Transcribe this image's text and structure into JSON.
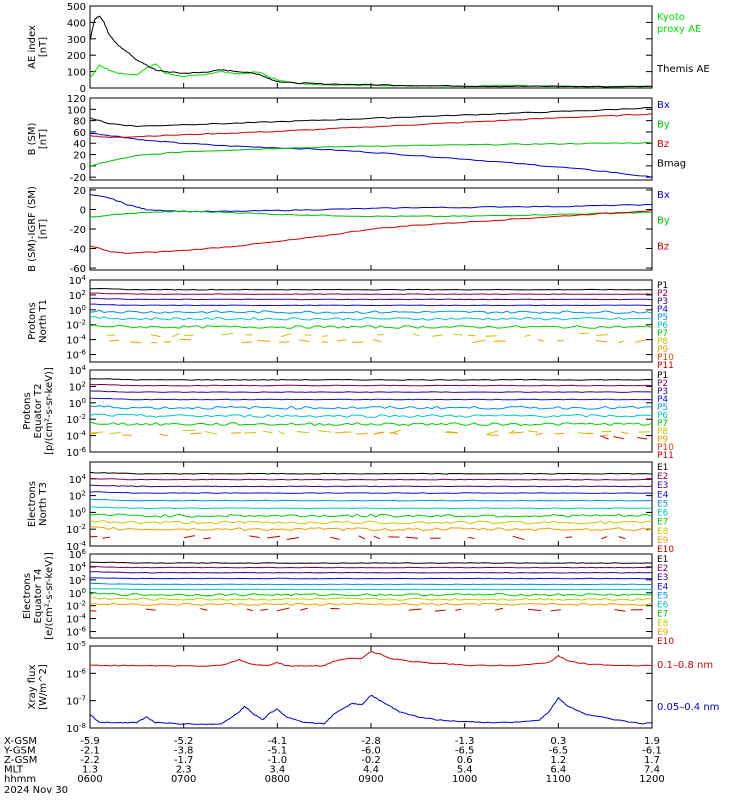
{
  "figure": {
    "date_label": "2024 Nov 30"
  },
  "time_axis": {
    "hours": [
      6,
      7,
      8,
      9,
      10,
      11,
      12
    ],
    "rows": [
      {
        "label": "X-GSM",
        "values": [
          "-5.9",
          "-5.2",
          "-4.1",
          "-2.8",
          "-1.3",
          "0.3",
          "1.9"
        ]
      },
      {
        "label": "Y-GSM",
        "values": [
          "-2.1",
          "-3.8",
          "-5.1",
          "-6.0",
          "-6.5",
          "-6.5",
          "-6.1"
        ]
      },
      {
        "label": "Z-GSM",
        "values": [
          "-2.2",
          "-1.7",
          "-1.0",
          "-0.2",
          "0.6",
          "1.2",
          "1.7"
        ]
      },
      {
        "label": "MLT",
        "values": [
          "1.3",
          "2.3",
          "3.4",
          "4.4",
          "5.4",
          "6.4",
          "7.4"
        ]
      },
      {
        "label": "hhmm",
        "values": [
          "0600",
          "0700",
          "0800",
          "0900",
          "1000",
          "1100",
          "1200"
        ]
      }
    ]
  },
  "chart_data": [
    {
      "type": "line",
      "ylabel": [
        "AE index",
        "[nT]"
      ],
      "ylim": [
        0,
        500
      ],
      "log": false,
      "ticks": [
        "0",
        "100",
        "200",
        "300",
        "400",
        "500"
      ],
      "series": [
        {
          "name": "Kyoto proxy AE",
          "color": "#00e000",
          "x": [
            6.0,
            6.05,
            6.1,
            6.2,
            6.3,
            6.5,
            6.6,
            6.7,
            6.8,
            7.0,
            7.2,
            7.4,
            7.6,
            7.8,
            7.9,
            8.0,
            8.2,
            8.5,
            9.0,
            9.5,
            10.0,
            10.5,
            11.0,
            11.5,
            12.0
          ],
          "y": [
            60,
            100,
            140,
            110,
            90,
            80,
            120,
            150,
            90,
            70,
            80,
            100,
            85,
            100,
            70,
            50,
            30,
            20,
            15,
            15,
            10,
            15,
            10,
            8,
            10
          ]
        },
        {
          "name": "Themis AE",
          "color": "#000000",
          "x": [
            6.0,
            6.05,
            6.1,
            6.15,
            6.2,
            6.3,
            6.4,
            6.5,
            6.6,
            6.7,
            6.8,
            7.0,
            7.2,
            7.4,
            7.6,
            7.8,
            7.9,
            8.0,
            8.2,
            8.5,
            9.0,
            9.5,
            10.0,
            10.5,
            11.0,
            11.5,
            12.0
          ],
          "y": [
            290,
            420,
            440,
            400,
            330,
            260,
            220,
            170,
            140,
            110,
            100,
            90,
            95,
            110,
            100,
            85,
            60,
            40,
            30,
            25,
            20,
            15,
            12,
            10,
            10,
            8,
            10
          ]
        }
      ],
      "legend": [
        {
          "text": "Kyoto",
          "color": "#00e000"
        },
        {
          "text": "proxy AE",
          "color": "#00e000"
        },
        {
          "text": "Themis AE",
          "color": "#000000"
        }
      ]
    },
    {
      "type": "line",
      "ylabel": [
        "B (SM)",
        "[nT]"
      ],
      "ylim": [
        -25,
        120
      ],
      "log": false,
      "ticks": [
        "-20",
        "0",
        "20",
        "40",
        "60",
        "80",
        "100",
        "120"
      ],
      "series": [
        {
          "name": "Bx",
          "color": "#0000d0",
          "x": [
            6.0,
            6.3,
            6.6,
            7.0,
            7.5,
            8.0,
            8.5,
            9.0,
            9.5,
            10.0,
            10.5,
            11.0,
            11.5,
            12.0
          ],
          "y": [
            58,
            52,
            45,
            40,
            35,
            32,
            29,
            24,
            18,
            12,
            5,
            -2,
            -10,
            -20
          ]
        },
        {
          "name": "By",
          "color": "#00c000",
          "x": [
            6.0,
            6.2,
            6.5,
            7.0,
            7.5,
            8.0,
            8.5,
            9.0,
            9.5,
            10.0,
            10.5,
            11.0,
            11.5,
            12.0
          ],
          "y": [
            0,
            8,
            18,
            25,
            28,
            31,
            33,
            35,
            36,
            37,
            38,
            39,
            40,
            41
          ]
        },
        {
          "name": "Bz",
          "color": "#d00000",
          "x": [
            6.0,
            6.2,
            6.5,
            7.0,
            7.5,
            8.0,
            8.5,
            9.0,
            9.5,
            10.0,
            10.5,
            11.0,
            11.5,
            12.0
          ],
          "y": [
            54,
            50,
            52,
            55,
            58,
            61,
            65,
            69,
            73,
            77,
            81,
            85,
            88,
            92
          ]
        },
        {
          "name": "Bmag",
          "color": "#000000",
          "x": [
            6.0,
            6.2,
            6.5,
            7.0,
            7.5,
            8.0,
            8.5,
            9.0,
            9.5,
            10.0,
            10.5,
            11.0,
            11.5,
            12.0
          ],
          "y": [
            85,
            75,
            70,
            73,
            75,
            78,
            81,
            84,
            87,
            90,
            93,
            96,
            99,
            103
          ]
        }
      ],
      "legend": [
        {
          "text": "Bx",
          "color": "#0000d0"
        },
        {
          "text": "By",
          "color": "#00c000"
        },
        {
          "text": "Bz",
          "color": "#d00000"
        },
        {
          "text": "Bmag",
          "color": "#000000"
        }
      ]
    },
    {
      "type": "line",
      "ylabel": [
        "B (SM)-IGRF (SM)",
        "[nT]"
      ],
      "ylim": [
        -62,
        22
      ],
      "log": false,
      "ticks": [
        "-60",
        "-40",
        "-20",
        "0",
        "20"
      ],
      "series": [
        {
          "name": "Bx",
          "color": "#0000d0",
          "x": [
            6.0,
            6.2,
            6.4,
            6.6,
            7.0,
            7.5,
            8.0,
            8.5,
            9.0,
            9.5,
            10.0,
            10.5,
            11.0,
            11.5,
            12.0
          ],
          "y": [
            15,
            12,
            5,
            0,
            -2,
            -2,
            -1,
            0,
            1,
            2,
            2,
            3,
            3,
            4,
            5
          ]
        },
        {
          "name": "By",
          "color": "#00c000",
          "x": [
            6.0,
            6.3,
            6.6,
            7.0,
            7.5,
            8.0,
            8.5,
            9.0,
            9.5,
            10.0,
            10.5,
            11.0,
            11.5,
            12.0
          ],
          "y": [
            -8,
            -5,
            -3,
            -2,
            -3,
            -5,
            -6,
            -7,
            -7,
            -7,
            -6,
            -5,
            -4,
            -3
          ]
        },
        {
          "name": "Bz",
          "color": "#d00000",
          "x": [
            6.0,
            6.2,
            6.4,
            7.0,
            7.5,
            8.0,
            8.5,
            9.0,
            9.5,
            10.0,
            10.5,
            11.0,
            11.5,
            12.0
          ],
          "y": [
            -37,
            -43,
            -45,
            -42,
            -38,
            -33,
            -27,
            -20,
            -16,
            -13,
            -10,
            -7,
            -4,
            -1
          ]
        }
      ],
      "legend": [
        {
          "text": "Bx",
          "color": "#0000d0"
        },
        {
          "text": "By",
          "color": "#00c000"
        },
        {
          "text": "Bz",
          "color": "#d00000"
        }
      ]
    },
    {
      "type": "line",
      "ylabel": [
        "Protons",
        "North T1"
      ],
      "ylim": [
        -7,
        4
      ],
      "log": true,
      "ticks": [
        "10^-6",
        "10^-4",
        "10^-2",
        "10^0",
        "10^2",
        "10^4"
      ],
      "series_levels": [
        {
          "name": "P1",
          "color": "#000000",
          "level": 2.7
        },
        {
          "name": "P2",
          "color": "#800050",
          "level": 2.1
        },
        {
          "name": "P3",
          "color": "#3a0090",
          "level": 1.4
        },
        {
          "name": "P4",
          "color": "#1010e0",
          "level": 0.6
        },
        {
          "name": "P5",
          "color": "#0090f0",
          "level": -0.3
        },
        {
          "name": "P6",
          "color": "#00c8c0",
          "level": -1.2
        },
        {
          "name": "P7",
          "color": "#00d000",
          "level": -2.3
        },
        {
          "name": "P8",
          "color": "#c8c800",
          "level": -3.4,
          "dashed": true
        },
        {
          "name": "P9",
          "color": "#f0a000",
          "level": -4.2,
          "dashed": true
        },
        {
          "name": "P10",
          "color": "#e04000"
        },
        {
          "name": "P11",
          "color": "#c00000"
        }
      ]
    },
    {
      "type": "line",
      "ylabel": [
        "Protons",
        "Equator T2",
        "[p/(cm²-s-sr-keV)]"
      ],
      "ylim": [
        -6,
        4
      ],
      "log": true,
      "ticks": [
        "10^-6",
        "10^-4",
        "10^-2",
        "10^0",
        "10^2",
        "10^4"
      ],
      "series_levels": [
        {
          "name": "P1",
          "color": "#000000",
          "level": 2.8
        },
        {
          "name": "P2",
          "color": "#800050",
          "level": 2.1
        },
        {
          "name": "P3",
          "color": "#3a0090",
          "level": 1.3
        },
        {
          "name": "P4",
          "color": "#1010e0",
          "level": 0.4
        },
        {
          "name": "P5",
          "color": "#0090f0",
          "level": -0.6
        },
        {
          "name": "P6",
          "color": "#00c8c0",
          "level": -1.6
        },
        {
          "name": "P7",
          "color": "#00d000",
          "level": -2.6
        },
        {
          "name": "P8",
          "color": "#c8c800",
          "level": -3.6,
          "dashed": true
        },
        {
          "name": "P9",
          "color": "#f0a000",
          "level": -3.8,
          "dashed": true
        },
        {
          "name": "P10",
          "color": "#e04000"
        },
        {
          "name": "P11",
          "color": "#c00000",
          "level": -4.2,
          "dashed": true,
          "start": 11.45
        }
      ]
    },
    {
      "type": "line",
      "ylabel": [
        "Electrons",
        "North T3"
      ],
      "ylim": [
        -4,
        6
      ],
      "log": true,
      "ticks": [
        "10^-4",
        "10^-2",
        "10^0",
        "10^2",
        "10^4"
      ],
      "series_levels": [
        {
          "name": "E1",
          "color": "#000000",
          "level": 4.6
        },
        {
          "name": "E2",
          "color": "#800050",
          "level": 3.9
        },
        {
          "name": "E3",
          "color": "#3a0090",
          "level": 3.1
        },
        {
          "name": "E4",
          "color": "#1010e0",
          "level": 2.3
        },
        {
          "name": "E5",
          "color": "#0090f0",
          "level": 1.4
        },
        {
          "name": "E6",
          "color": "#00c8c0",
          "level": 0.5
        },
        {
          "name": "E7",
          "color": "#00d000",
          "level": -0.4
        },
        {
          "name": "E8",
          "color": "#c8c800",
          "level": -1.2
        },
        {
          "name": "E9",
          "color": "#f0a000",
          "level": -2.0
        },
        {
          "name": "E10",
          "color": "#c00000",
          "level": -3.0,
          "dashed": true
        }
      ]
    },
    {
      "type": "line",
      "ylabel": [
        "Electrons",
        "Equator T4",
        "[e/(cm²-s-sr-keV)]"
      ],
      "ylim": [
        -7,
        6
      ],
      "log": true,
      "ticks": [
        "10^-6",
        "10^-4",
        "10^-2",
        "10^0",
        "10^2",
        "10^4",
        "10^6"
      ],
      "series_levels": [
        {
          "name": "E1",
          "color": "#000000",
          "level": 4.6
        },
        {
          "name": "E2",
          "color": "#800050",
          "level": 3.9
        },
        {
          "name": "E3",
          "color": "#3a0090",
          "level": 3.1
        },
        {
          "name": "E4",
          "color": "#1010e0",
          "level": 2.2
        },
        {
          "name": "E5",
          "color": "#0090f0",
          "level": 1.3
        },
        {
          "name": "E6",
          "color": "#00c8c0",
          "level": 0.5
        },
        {
          "name": "E7",
          "color": "#00d000",
          "level": -0.3
        },
        {
          "name": "E8",
          "color": "#c8c800",
          "level": -1.0
        },
        {
          "name": "E9",
          "color": "#f0a000",
          "level": -1.8
        },
        {
          "name": "E10",
          "color": "#c00000",
          "level": -2.6,
          "dashed": true
        }
      ]
    },
    {
      "type": "line",
      "ylabel": [
        "Xray flux",
        "[W/m^2]"
      ],
      "ylim": [
        -8,
        -5
      ],
      "log": true,
      "ticks": [
        "10^-8",
        "10^-7",
        "10^-6",
        "10^-5"
      ],
      "series": [
        {
          "name": "0.1–0.8 nm",
          "color": "#d00000",
          "x": [
            6.0,
            6.3,
            6.6,
            7.0,
            7.4,
            7.6,
            7.7,
            7.9,
            8.0,
            8.1,
            8.3,
            8.5,
            8.6,
            8.8,
            8.9,
            9.0,
            9.1,
            9.2,
            9.4,
            9.6,
            9.8,
            10.0,
            10.5,
            10.9,
            11.0,
            11.1,
            11.3,
            11.6,
            12.0
          ],
          "y": [
            -5.7,
            -5.72,
            -5.72,
            -5.73,
            -5.72,
            -5.5,
            -5.65,
            -5.72,
            -5.6,
            -5.72,
            -5.74,
            -5.72,
            -5.55,
            -5.45,
            -5.45,
            -5.2,
            -5.3,
            -5.45,
            -5.55,
            -5.62,
            -5.65,
            -5.7,
            -5.72,
            -5.6,
            -5.35,
            -5.55,
            -5.65,
            -5.72,
            -5.72
          ]
        },
        {
          "name": "0.05–0.4 nm",
          "color": "#0000d0",
          "x": [
            6.0,
            6.1,
            6.3,
            6.5,
            6.6,
            6.7,
            7.0,
            7.4,
            7.6,
            7.65,
            7.75,
            7.85,
            7.9,
            8.0,
            8.1,
            8.3,
            8.5,
            8.6,
            8.8,
            8.9,
            9.0,
            9.1,
            9.2,
            9.3,
            9.5,
            9.7,
            9.9,
            10.2,
            10.5,
            10.8,
            10.9,
            11.0,
            11.1,
            11.3,
            11.6,
            11.9,
            12.0
          ],
          "y": [
            -7.5,
            -7.8,
            -7.8,
            -7.8,
            -7.6,
            -7.8,
            -7.85,
            -7.85,
            -7.4,
            -7.2,
            -7.5,
            -7.7,
            -7.5,
            -7.3,
            -7.6,
            -7.8,
            -7.85,
            -7.5,
            -7.1,
            -7.15,
            -6.8,
            -7.0,
            -7.2,
            -7.4,
            -7.6,
            -7.7,
            -7.75,
            -7.8,
            -7.8,
            -7.7,
            -7.4,
            -6.9,
            -7.2,
            -7.5,
            -7.7,
            -7.85,
            -7.8
          ]
        }
      ],
      "legend": [
        {
          "text": "0.1–0.8 nm",
          "color": "#d00000"
        },
        {
          "text": "0.05–0.4 nm",
          "color": "#0000d0"
        }
      ]
    }
  ]
}
